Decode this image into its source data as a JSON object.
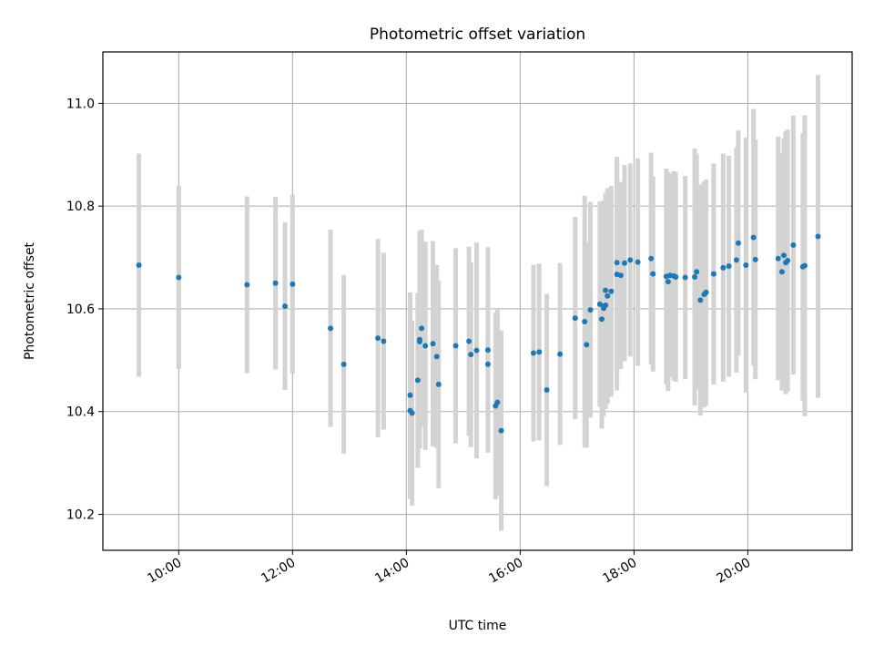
{
  "chart_data": {
    "type": "scatter",
    "title": "Photometric offset variation",
    "xlabel": "UTC time",
    "ylabel": "Photometric offset",
    "x_tick_labels": [
      "10:00",
      "12:00",
      "14:00",
      "16:00",
      "18:00",
      "20:00"
    ],
    "x_tick_hours": [
      10,
      12,
      14,
      16,
      18,
      20
    ],
    "y_tick_labels": [
      "10.2",
      "10.4",
      "10.6",
      "10.8",
      "11.0"
    ],
    "y_tick_values": [
      10.2,
      10.4,
      10.6,
      10.8,
      11.0
    ],
    "xlim": [
      "08:40",
      "21:50"
    ],
    "ylim": [
      10.13,
      11.1
    ],
    "grid": true,
    "marker_color": "#1f77b4",
    "errorbar_color": "#d3d3d3",
    "series": [
      {
        "x": [
          "09:18",
          "10:00",
          "11:12",
          "11:42",
          "11:52",
          "12:00",
          "12:40",
          "12:54",
          "13:30",
          "13:36",
          "14:04",
          "14:04",
          "14:06",
          "14:12",
          "14:14",
          "14:14",
          "14:16",
          "14:20",
          "14:28",
          "14:32",
          "14:34",
          "14:52",
          "15:06",
          "15:08",
          "15:14",
          "15:26",
          "15:26",
          "15:34",
          "15:36",
          "15:40",
          "16:14",
          "16:20",
          "16:28",
          "16:42",
          "16:58",
          "17:08",
          "17:10",
          "17:14",
          "17:24",
          "17:26",
          "17:28",
          "17:28",
          "17:30",
          "17:30",
          "17:32",
          "17:36",
          "17:42",
          "17:42",
          "17:46",
          "17:50",
          "17:56",
          "18:04",
          "18:18",
          "18:20",
          "18:34",
          "18:36",
          "18:38",
          "18:42",
          "18:44",
          "18:54",
          "19:04",
          "19:06",
          "19:10",
          "19:14",
          "19:16",
          "19:24",
          "19:34",
          "19:40",
          "19:48",
          "19:50",
          "19:58",
          "20:06",
          "20:08",
          "20:32",
          "20:36",
          "20:38",
          "20:40",
          "20:42",
          "20:48",
          "20:58",
          "21:00",
          "21:14"
        ],
        "y": [
          10.685,
          10.661,
          10.647,
          10.65,
          10.605,
          10.648,
          10.562,
          10.492,
          10.543,
          10.537,
          10.432,
          10.402,
          10.397,
          10.461,
          10.54,
          10.536,
          10.562,
          10.528,
          10.532,
          10.507,
          10.453,
          10.528,
          10.537,
          10.511,
          10.519,
          10.492,
          10.52,
          10.411,
          10.418,
          10.363,
          10.514,
          10.516,
          10.442,
          10.512,
          10.582,
          10.575,
          10.53,
          10.598,
          10.609,
          10.58,
          10.601,
          10.605,
          10.607,
          10.636,
          10.625,
          10.634,
          10.667,
          10.69,
          10.665,
          10.689,
          10.695,
          10.691,
          10.698,
          10.668,
          10.663,
          10.653,
          10.665,
          10.664,
          10.662,
          10.661,
          10.662,
          10.672,
          10.617,
          10.628,
          10.632,
          10.668,
          10.68,
          10.683,
          10.695,
          10.728,
          10.685,
          10.739,
          10.696,
          10.698,
          10.672,
          10.704,
          10.69,
          10.694,
          10.724,
          10.682,
          10.684,
          10.741
        ],
        "err": [
          0.217,
          0.178,
          0.172,
          0.168,
          0.163,
          0.174,
          0.192,
          0.174,
          0.193,
          0.172,
          0.2,
          0.172,
          0.18,
          0.17,
          0.212,
          0.2,
          0.192,
          0.203,
          0.2,
          0.178,
          0.202,
          0.19,
          0.184,
          0.18,
          0.21,
          0.16,
          0.2,
          0.182,
          0.182,
          0.195,
          0.172,
          0.172,
          0.187,
          0.177,
          0.197,
          0.245,
          0.2,
          0.21,
          0.2,
          0.213,
          0.21,
          0.195,
          0.202,
          0.19,
          0.21,
          0.205,
          0.226,
          0.206,
          0.182,
          0.191,
          0.188,
          0.202,
          0.206,
          0.19,
          0.21,
          0.213,
          0.198,
          0.204,
          0.204,
          0.198,
          0.25,
          0.23,
          0.225,
          0.22,
          0.22,
          0.215,
          0.222,
          0.215,
          0.219,
          0.219,
          0.248,
          0.25,
          0.233,
          0.237,
          0.231,
          0.228,
          0.256,
          0.255,
          0.252,
          0.26,
          0.293,
          0.314
        ]
      }
    ]
  }
}
